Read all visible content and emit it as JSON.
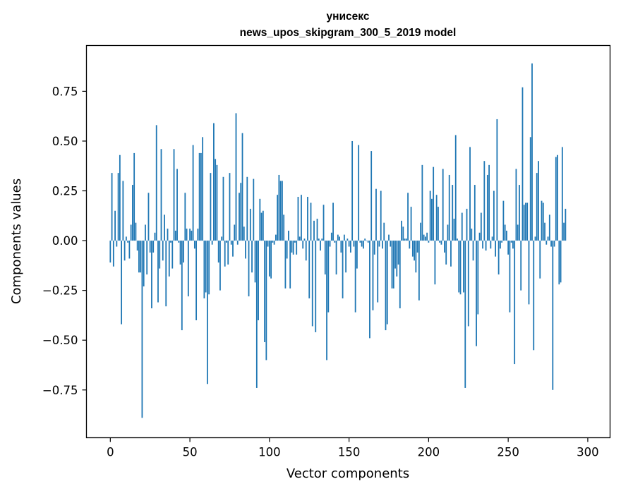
{
  "chart_data": {
    "type": "bar",
    "title_line1": "унисекс",
    "title_line2": "news_upos_skipgram_300_5_2019 model",
    "xlabel": "Vector components",
    "ylabel": "Components values",
    "xlim": [
      -15,
      314
    ],
    "ylim": [
      -0.99,
      0.98
    ],
    "xticks": [
      0,
      50,
      100,
      150,
      200,
      250,
      300
    ],
    "xtick_labels": [
      "0",
      "50",
      "100",
      "150",
      "200",
      "250",
      "300"
    ],
    "yticks": [
      -0.75,
      -0.5,
      -0.25,
      0.0,
      0.25,
      0.5,
      0.75
    ],
    "ytick_labels": [
      "−0.75",
      "−0.50",
      "−0.25",
      "0.00",
      "0.25",
      "0.50",
      "0.75"
    ],
    "bar_color": "#1f77b4",
    "values": [
      -0.11,
      0.34,
      -0.13,
      0.15,
      -0.03,
      0.34,
      0.43,
      -0.42,
      0.3,
      -0.1,
      0.02,
      -0.01,
      -0.09,
      0.08,
      0.28,
      0.44,
      0.09,
      -0.05,
      -0.16,
      -0.16,
      -0.89,
      -0.23,
      0.08,
      -0.17,
      0.24,
      -0.06,
      -0.34,
      -0.06,
      0.04,
      0.58,
      -0.31,
      -0.14,
      0.46,
      -0.1,
      0.13,
      -0.33,
      0.06,
      -0.18,
      -0.01,
      -0.14,
      0.46,
      0.05,
      0.36,
      -0.01,
      -0.12,
      -0.45,
      -0.11,
      0.24,
      0.06,
      -0.28,
      0.06,
      0.05,
      0.48,
      -0.04,
      -0.4,
      0.06,
      0.44,
      0.44,
      0.52,
      -0.29,
      -0.26,
      -0.72,
      -0.27,
      0.34,
      -0.02,
      0.59,
      0.41,
      0.38,
      -0.11,
      -0.25,
      0.02,
      0.32,
      -0.13,
      -0.01,
      -0.12,
      0.34,
      -0.02,
      -0.08,
      0.08,
      0.64,
      -0.02,
      0.24,
      0.29,
      0.54,
      0.07,
      -0.09,
      0.32,
      -0.28,
      0.16,
      -0.16,
      0.31,
      -0.21,
      -0.74,
      -0.4,
      0.21,
      0.14,
      0.15,
      -0.51,
      -0.6,
      -0.03,
      -0.18,
      -0.19,
      -0.01,
      -0.02,
      0.03,
      0.23,
      0.33,
      0.3,
      0.3,
      0.13,
      -0.24,
      -0.09,
      0.05,
      -0.24,
      -0.06,
      -0.07,
      -0.01,
      -0.07,
      0.22,
      0.02,
      0.23,
      -0.04,
      0.01,
      -0.1,
      0.22,
      -0.29,
      0.19,
      -0.43,
      0.1,
      -0.46,
      0.11,
      0.01,
      -0.05,
      0.01,
      0.18,
      -0.17,
      -0.6,
      -0.36,
      -0.03,
      0.04,
      0.19,
      -0.01,
      -0.17,
      0.03,
      0.02,
      -0.06,
      -0.29,
      0.03,
      -0.16,
      0.01,
      -0.03,
      -0.06,
      0.5,
      -0.03,
      -0.36,
      -0.14,
      0.48,
      -0.01,
      -0.03,
      -0.04,
      0.01,
      0.0,
      -0.01,
      -0.49,
      0.45,
      -0.35,
      -0.07,
      0.26,
      -0.31,
      -0.03,
      0.25,
      -0.04,
      0.09,
      -0.45,
      -0.42,
      0.03,
      -0.03,
      -0.24,
      -0.24,
      -0.14,
      -0.18,
      -0.12,
      -0.34,
      0.1,
      0.07,
      0.01,
      0.01,
      0.24,
      -0.04,
      0.17,
      -0.08,
      -0.1,
      -0.16,
      -0.06,
      -0.3,
      0.09,
      0.38,
      0.03,
      0.02,
      0.04,
      -0.01,
      0.25,
      0.21,
      0.37,
      -0.22,
      0.23,
      0.17,
      -0.01,
      -0.02,
      0.36,
      -0.06,
      -0.12,
      0.08,
      0.33,
      -0.13,
      0.28,
      0.11,
      0.53,
      0.01,
      -0.26,
      -0.27,
      0.14,
      -0.26,
      -0.74,
      0.16,
      -0.43,
      0.47,
      0.06,
      -0.1,
      0.28,
      -0.53,
      -0.37,
      0.04,
      0.14,
      -0.04,
      0.4,
      -0.05,
      0.33,
      0.38,
      -0.04,
      0.02,
      0.25,
      -0.08,
      0.61,
      -0.17,
      -0.04,
      -0.01,
      0.2,
      0.08,
      0.05,
      -0.07,
      -0.36,
      -0.01,
      -0.04,
      -0.62,
      0.36,
      0.08,
      0.28,
      -0.25,
      0.77,
      0.18,
      0.19,
      0.19,
      -0.32,
      0.52,
      0.89,
      -0.55,
      0.02,
      0.34,
      0.4,
      -0.19,
      0.2,
      0.19,
      0.09,
      -0.02,
      0.02,
      0.13,
      -0.03,
      -0.75,
      -0.03,
      0.42,
      0.43,
      -0.22,
      -0.21,
      0.47,
      0.09,
      0.16
    ]
  }
}
